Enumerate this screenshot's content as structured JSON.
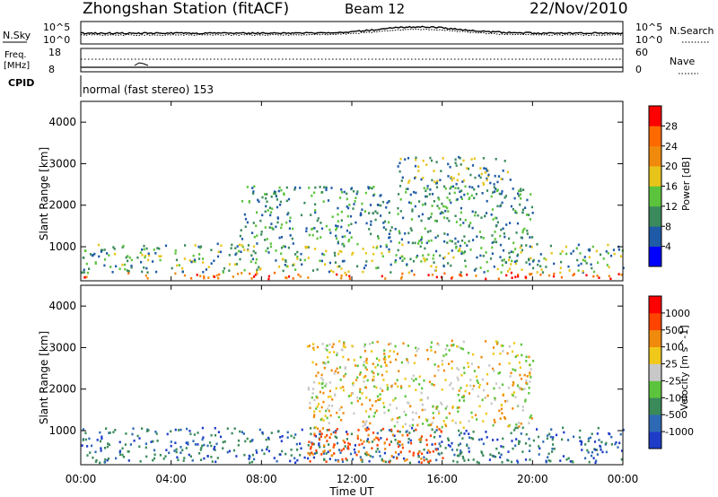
{
  "header": {
    "station": "Zhongshan Station (fitACF)",
    "beam": "Beam 12",
    "date": "22/Nov/2010"
  },
  "top_panels": {
    "nsky": {
      "label": "N.Sky",
      "ticks": [
        "10^5",
        "10^0"
      ],
      "right_label": "N.Search",
      "right_ticks": [
        "10^5",
        "10^0"
      ]
    },
    "freq": {
      "label_line1": "Freq.",
      "label_line2": "[MHz]",
      "ticks": [
        "18",
        "8"
      ],
      "right_label": "Nave",
      "right_ticks": [
        "60",
        "0"
      ]
    },
    "cpid": {
      "label": "CPID",
      "program": "normal (fast stereo) 153"
    }
  },
  "x_axis": {
    "label": "Time UT",
    "ticks": [
      "00:00",
      "04:00",
      "08:00",
      "12:00",
      "16:00",
      "20:00",
      "00:00"
    ]
  },
  "chart_data": [
    {
      "type": "heatmap",
      "title": "",
      "xlabel": "Time UT",
      "ylabel": "Slant Range [km]",
      "x_ticks": [
        "00:00",
        "04:00",
        "08:00",
        "12:00",
        "16:00",
        "20:00",
        "00:00"
      ],
      "y_ticks": [
        "1000",
        "2000",
        "3000",
        "4000"
      ],
      "xlim_hours": [
        0,
        24
      ],
      "ylim": [
        180,
        4500
      ],
      "colorbar": {
        "label": "Power [dB]",
        "ticks": [
          "4",
          "8",
          "12",
          "16",
          "20",
          "24",
          "28"
        ],
        "colors": [
          "#0000ff",
          "#1e5aa6",
          "#3b8a5c",
          "#5cc43c",
          "#e8c41a",
          "#f08a0c",
          "#ff6a00",
          "#ff0000"
        ]
      },
      "scatter_bands": [
        {
          "t0": 0,
          "t1": 24,
          "r0": 250,
          "r1": 400,
          "palette_index": [
            6,
            7,
            5
          ]
        },
        {
          "t0": 0,
          "t1": 24,
          "r0": 400,
          "r1": 1100,
          "palette_index": [
            2,
            3,
            4,
            1
          ]
        },
        {
          "t0": 7,
          "t1": 20,
          "r0": 1100,
          "r1": 2500,
          "palette_index": [
            1,
            2,
            3
          ]
        },
        {
          "t0": 14,
          "t1": 19,
          "r0": 2500,
          "r1": 3200,
          "palette_index": [
            1,
            2,
            4
          ]
        }
      ]
    },
    {
      "type": "heatmap",
      "title": "",
      "xlabel": "Time UT",
      "ylabel": "Slant Range [km]",
      "x_ticks": [
        "00:00",
        "04:00",
        "08:00",
        "12:00",
        "16:00",
        "20:00",
        "00:00"
      ],
      "y_ticks": [
        "1000",
        "2000",
        "3000",
        "4000"
      ],
      "xlim_hours": [
        0,
        24
      ],
      "ylim": [
        180,
        4500
      ],
      "colorbar": {
        "label": "Velocity [m s^-1]",
        "ticks": [
          "1000",
          "500",
          "100",
          "25",
          "-25",
          "-100",
          "-500",
          "-1000"
        ],
        "colors": [
          "#1e3cc8",
          "#2e6ab4",
          "#3a8a5a",
          "#5cc43c",
          "#c8c8c8",
          "#f0c81a",
          "#f08a0c",
          "#ff4400",
          "#ff0000"
        ]
      },
      "scatter_bands": [
        {
          "t0": 0,
          "t1": 24,
          "r0": 250,
          "r1": 1100,
          "palette_index": [
            2,
            2,
            1,
            0
          ]
        },
        {
          "t0": 10,
          "t1": 16,
          "r0": 250,
          "r1": 1100,
          "palette_index": [
            7,
            6,
            7
          ]
        },
        {
          "t0": 10,
          "t1": 20,
          "r0": 1100,
          "r1": 3200,
          "palette_index": [
            6,
            4,
            5,
            3
          ]
        }
      ]
    }
  ]
}
